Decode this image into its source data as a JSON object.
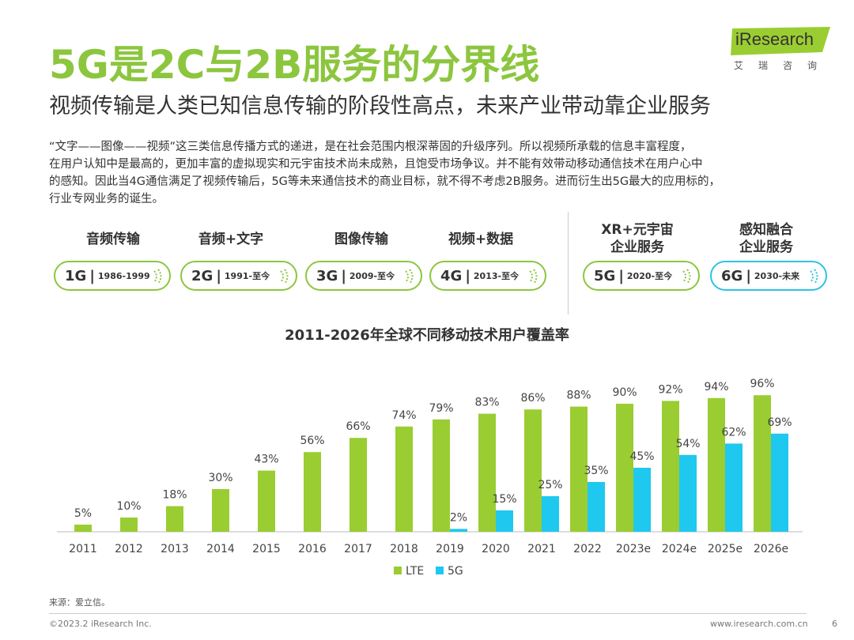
{
  "title": "5G是2C与2B服务的分界线",
  "subtitle": "视频传输是人类已知信息传输的阶段性高点，未来产业带动靠企业服务",
  "logo": {
    "brand": "iResearch",
    "cn": "艾瑞咨询"
  },
  "paragraph": [
    "“文字——图像——视频”这三类信息传播方式的递进，是在社会范围内根深蒂固的升级序列。所以视频所承载的信息丰富程度，",
    "在用户认知中是最高的，更加丰富的虚拟现实和元宇宙技术尚未成熟，且饱受市场争议。并不能有效带动移动通信技术在用户心中",
    "的感知。因此当4G通信满足了视频传输后，5G等未来通信技术的商业目标，就不得不考虑2B服务。进而衍生出5G最大的应用标的，",
    "行业专网业务的诞生。"
  ],
  "generations": [
    {
      "label": "音频传输",
      "label2": "",
      "gen": "1G",
      "years": "1986-1999",
      "color": "#8cc63f"
    },
    {
      "label": "音频+文字",
      "label2": "",
      "gen": "2G",
      "years": "1991-至今",
      "color": "#8cc63f"
    },
    {
      "label": "图像传输",
      "label2": "",
      "gen": "3G",
      "years": "2009-至今",
      "color": "#8cc63f"
    },
    {
      "label": "视频+数据",
      "label2": "",
      "gen": "4G",
      "years": "2013-至今",
      "color": "#8cc63f"
    },
    {
      "label": "XR+元宇宙",
      "label2": "企业服务",
      "gen": "5G",
      "years": "2020-至今",
      "color": "#8cc63f"
    },
    {
      "label": "感知融合",
      "label2": "企业服务",
      "gen": "6G",
      "years": "2030-未来",
      "color": "#2cc3e6"
    }
  ],
  "chart_data": {
    "type": "bar",
    "title": "2011-2026年全球不同移动技术用户覆盖率",
    "categories": [
      "2011",
      "2012",
      "2013",
      "2014",
      "2015",
      "2016",
      "2017",
      "2018",
      "2019",
      "2020",
      "2021",
      "2022",
      "2023e",
      "2024e",
      "2025e",
      "2026e"
    ],
    "series": [
      {
        "name": "LTE",
        "color": "#9acd32",
        "values": [
          5,
          10,
          18,
          30,
          43,
          56,
          66,
          74,
          79,
          83,
          86,
          88,
          90,
          92,
          94,
          96
        ]
      },
      {
        "name": "5G",
        "color": "#1fc8ef",
        "values": [
          null,
          null,
          null,
          null,
          null,
          null,
          null,
          null,
          2,
          15,
          25,
          35,
          45,
          54,
          62,
          69
        ]
      }
    ],
    "unit": "%",
    "ylim": [
      0,
      100
    ]
  },
  "footer": {
    "source": "来源：爱立信。",
    "copyright": "©2023.2 iResearch Inc.",
    "url": "www.iresearch.com.cn",
    "page": "6"
  }
}
